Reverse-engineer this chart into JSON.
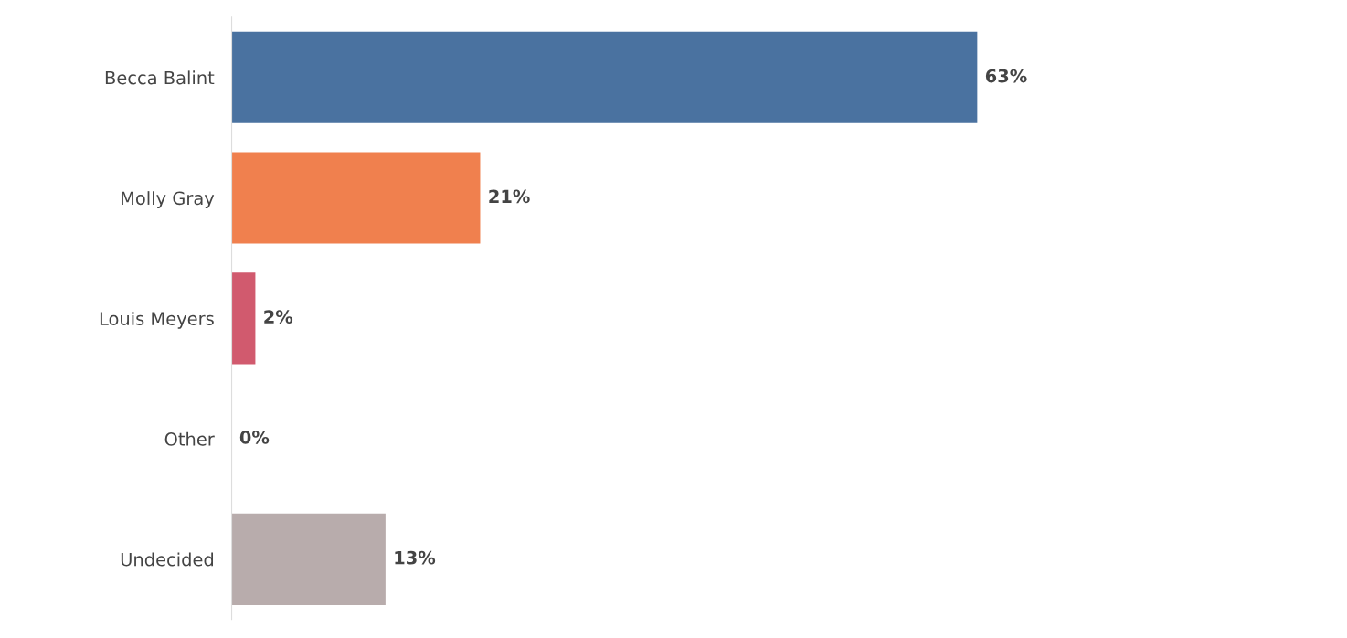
{
  "chart_data": {
    "type": "bar",
    "orientation": "horizontal",
    "categories": [
      "Becca Balint",
      "Molly Gray",
      "Louis Meyers",
      "Other",
      "Undecided"
    ],
    "values": [
      63,
      21,
      2,
      0,
      13
    ],
    "colors": [
      "#4a72a0",
      "#f0804e",
      "#d15a6e",
      "#e3a3c3",
      "#b8acac"
    ],
    "value_labels": [
      "63%",
      "21%",
      "2%",
      "0%",
      "13%"
    ],
    "tick_labels": "y",
    "grid": false,
    "legend": false
  }
}
